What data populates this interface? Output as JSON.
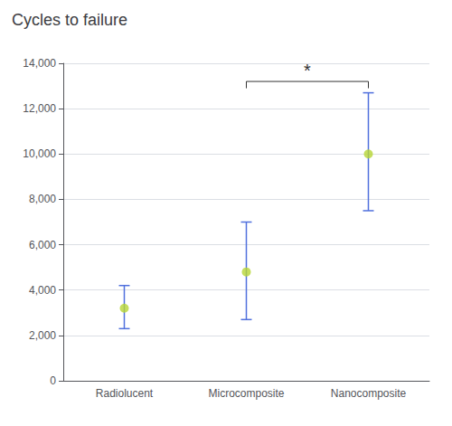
{
  "chart_data": {
    "type": "scatter",
    "title": "Cycles to failure",
    "categories": [
      "Radiolucent",
      "Microcomposite",
      "Nanocomposite"
    ],
    "values": [
      3200,
      4800,
      10000
    ],
    "error_lower": [
      900,
      2100,
      2500
    ],
    "error_upper": [
      1000,
      2200,
      2700
    ],
    "ylim": [
      0,
      14000
    ],
    "yticks": [
      0,
      2000,
      4000,
      6000,
      8000,
      10000,
      12000,
      14000
    ],
    "grid": true,
    "annotations": [
      {
        "text": "*",
        "from": "Microcomposite",
        "to": "Nanocomposite",
        "y": 13200,
        "y_end": 12900,
        "text_y": 13300
      }
    ]
  }
}
